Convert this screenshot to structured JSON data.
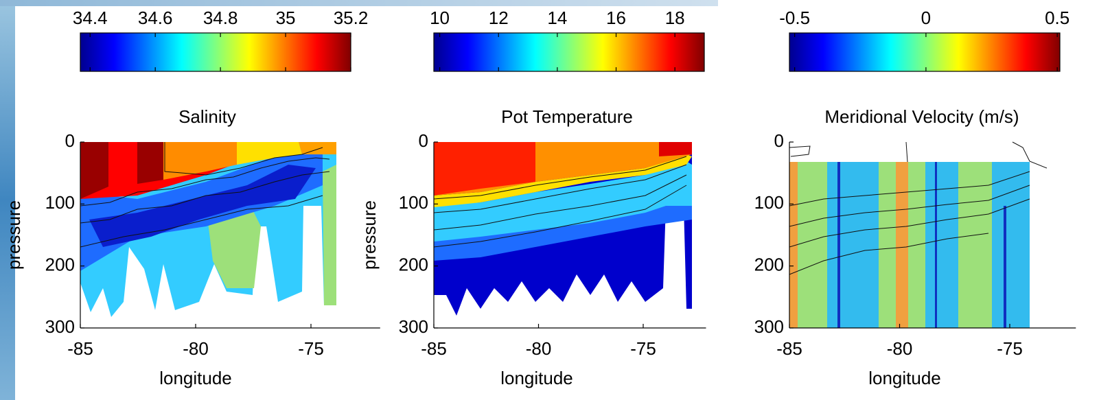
{
  "chart_data": [
    {
      "type": "contour",
      "title": "Salinity",
      "xlabel": "longitude",
      "ylabel": "pressure",
      "xlim": [
        -85,
        -72
      ],
      "xticks": [
        -85,
        -80,
        -75
      ],
      "ylim": [
        0,
        300
      ],
      "yticks": [
        0,
        100,
        200,
        300
      ],
      "y_reverse": true,
      "colorbar": {
        "clim": [
          34.37,
          35.2
        ],
        "ticks": [
          34.4,
          34.6,
          34.8,
          35,
          35.2
        ]
      }
    },
    {
      "type": "contour",
      "title": "Pot Temperature",
      "xlabel": "longitude",
      "ylabel": "pressure",
      "xlim": [
        -85,
        -72
      ],
      "xticks": [
        -85,
        -80,
        -75
      ],
      "ylim": [
        0,
        300
      ],
      "yticks": [
        0,
        100,
        200,
        300
      ],
      "y_reverse": true,
      "colorbar": {
        "clim": [
          9.8,
          19
        ],
        "ticks": [
          10,
          12,
          14,
          16,
          18
        ]
      }
    },
    {
      "type": "contour",
      "title": "Meridional Velocity (m/s)",
      "xlabel": "longitude",
      "xlim": [
        -85,
        -72
      ],
      "xticks": [
        -85,
        -80,
        -75
      ],
      "ylim": [
        0,
        300
      ],
      "yticks": [
        0,
        100,
        200,
        300
      ],
      "y_reverse": true,
      "colorbar": {
        "clim": [
          -0.52,
          0.51
        ],
        "ticks": [
          -0.5,
          0,
          0.5
        ]
      }
    }
  ]
}
